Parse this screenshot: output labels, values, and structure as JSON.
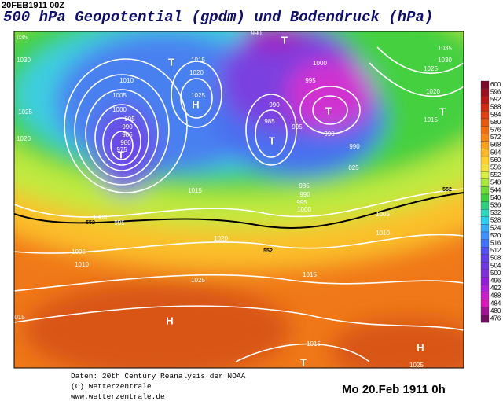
{
  "header": {
    "stamp": "20FEB1911 00Z",
    "title": "500 hPa Geopotential (gpdm) und Bodendruck (hPa)"
  },
  "map": {
    "isobar_labels": [
      "035",
      "1030",
      "1025",
      "1020",
      "1010",
      "1005",
      "1000",
      "995",
      "990",
      "985",
      "980",
      "975",
      "1015",
      "1020",
      "1025",
      "990",
      "1000",
      "995",
      "990",
      "985",
      "995",
      "990",
      "990",
      "1015",
      "995",
      "1000",
      "1005",
      "1010",
      "1020",
      "1025",
      "015",
      "1015",
      "1015",
      "1005",
      "1010",
      "1000",
      "995",
      "990",
      "985",
      "1035",
      "1030",
      "1025",
      "1020",
      "1015",
      "025",
      "1025"
    ],
    "pressure_centers": [
      "T",
      "H",
      "T",
      "T",
      "T",
      "T",
      "T",
      "H",
      "T",
      "H"
    ],
    "contour_labels": [
      "552",
      "552",
      "552"
    ]
  },
  "colorbar": {
    "ticks": [
      600,
      596,
      592,
      588,
      584,
      580,
      576,
      572,
      568,
      564,
      560,
      556,
      552,
      548,
      544,
      540,
      536,
      532,
      528,
      524,
      520,
      516,
      512,
      508,
      504,
      500,
      496,
      492,
      488,
      484,
      480,
      476
    ],
    "colors": [
      "#7a0a2a",
      "#9a1020",
      "#b81818",
      "#d02a10",
      "#e04010",
      "#e85a10",
      "#f07010",
      "#f48818",
      "#f8a020",
      "#fbb828",
      "#fdd030",
      "#f5e040",
      "#d8ee40",
      "#a8e83a",
      "#70dc38",
      "#40d040",
      "#30d080",
      "#30d8c0",
      "#30d0f0",
      "#38b0f8",
      "#4090ff",
      "#4070ff",
      "#5050f0",
      "#6040e8",
      "#7038e0",
      "#8030d8",
      "#9020d8",
      "#b020d8",
      "#c820c8",
      "#d818b8",
      "#a01890",
      "#701060"
    ]
  },
  "footer": {
    "source_lines": [
      "Daten: 20th Century Reanalysis der NOAA",
      "(C) Wetterzentrale",
      "www.wetterzentrale.de"
    ],
    "date": "Mo 20.Feb 1911  0h"
  }
}
